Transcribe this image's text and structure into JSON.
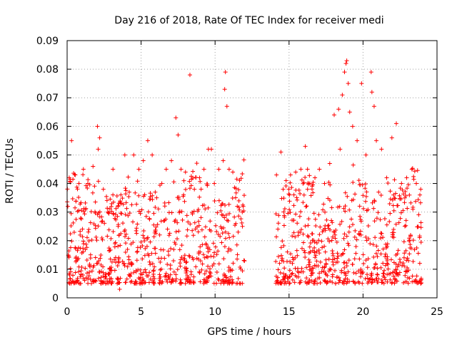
{
  "chart_data": {
    "type": "scatter",
    "title": "Day 216 of 2018, Rate Of TEC Index for receiver medi",
    "xlabel": "GPS time / hours",
    "ylabel": "ROTI / TECUs",
    "xlim": [
      0,
      25
    ],
    "ylim": [
      0,
      0.09
    ],
    "xticks": [
      0,
      5,
      10,
      15,
      20,
      25
    ],
    "xtick_labels": [
      "0",
      "5",
      "10",
      "15",
      "20",
      "25"
    ],
    "yticks": [
      0,
      0.01,
      0.02,
      0.03,
      0.04,
      0.05,
      0.06,
      0.07,
      0.08,
      0.09
    ],
    "ytick_labels": [
      "0",
      "0.01",
      "0.02",
      "0.03",
      "0.04",
      "0.05",
      "0.06",
      "0.07",
      "0.08",
      "0.09"
    ],
    "grid": true,
    "marker": "+",
    "color": "#ff0000",
    "data_gap_hours": [
      12.0,
      14.1
    ],
    "series": [
      {
        "name": "ROTI",
        "x": [
          0.05,
          0.3,
          0.55,
          0.8,
          1.1,
          1.4,
          1.75,
          2.05,
          2.1,
          2.2,
          2.45,
          2.75,
          3.1,
          3.45,
          3.55,
          3.65,
          3.9,
          4.2,
          4.5,
          4.85,
          5.15,
          5.45,
          5.75,
          6.05,
          6.4,
          6.7,
          7.05,
          7.35,
          7.5,
          7.7,
          8.0,
          8.3,
          8.6,
          8.95,
          9.25,
          9.55,
          9.75,
          9.95,
          10.25,
          10.55,
          10.65,
          10.7,
          10.8,
          10.95,
          11.2,
          11.5,
          11.85,
          14.15,
          14.45,
          14.6,
          14.8,
          15.1,
          15.45,
          15.8,
          16.1,
          16.4,
          16.75,
          17.05,
          17.4,
          17.75,
          18.05,
          18.35,
          18.45,
          18.6,
          18.75,
          18.85,
          18.9,
          19.0,
          19.1,
          19.3,
          19.6,
          19.9,
          20.2,
          20.55,
          20.6,
          20.75,
          20.9,
          21.25,
          21.6,
          21.95,
          22.25,
          22.6,
          22.95,
          23.3,
          23.6,
          23.9
        ],
        "y": [
          0.032,
          0.055,
          0.043,
          0.04,
          0.045,
          0.04,
          0.046,
          0.06,
          0.052,
          0.056,
          0.038,
          0.03,
          0.045,
          0.025,
          0.003,
          0.033,
          0.05,
          0.037,
          0.05,
          0.045,
          0.048,
          0.055,
          0.05,
          0.035,
          0.04,
          0.045,
          0.048,
          0.063,
          0.057,
          0.045,
          0.044,
          0.078,
          0.038,
          0.042,
          0.045,
          0.052,
          0.052,
          0.04,
          0.045,
          0.048,
          0.073,
          0.079,
          0.067,
          0.045,
          0.044,
          0.032,
          0.025,
          0.043,
          0.051,
          0.038,
          0.041,
          0.043,
          0.044,
          0.045,
          0.053,
          0.04,
          0.042,
          0.045,
          0.04,
          0.047,
          0.064,
          0.066,
          0.052,
          0.071,
          0.079,
          0.082,
          0.083,
          0.075,
          0.065,
          0.06,
          0.055,
          0.075,
          0.05,
          0.079,
          0.072,
          0.067,
          0.055,
          0.052,
          0.042,
          0.056,
          0.061,
          0.04,
          0.042,
          0.045,
          0.04,
          0.038
        ]
      }
    ]
  }
}
